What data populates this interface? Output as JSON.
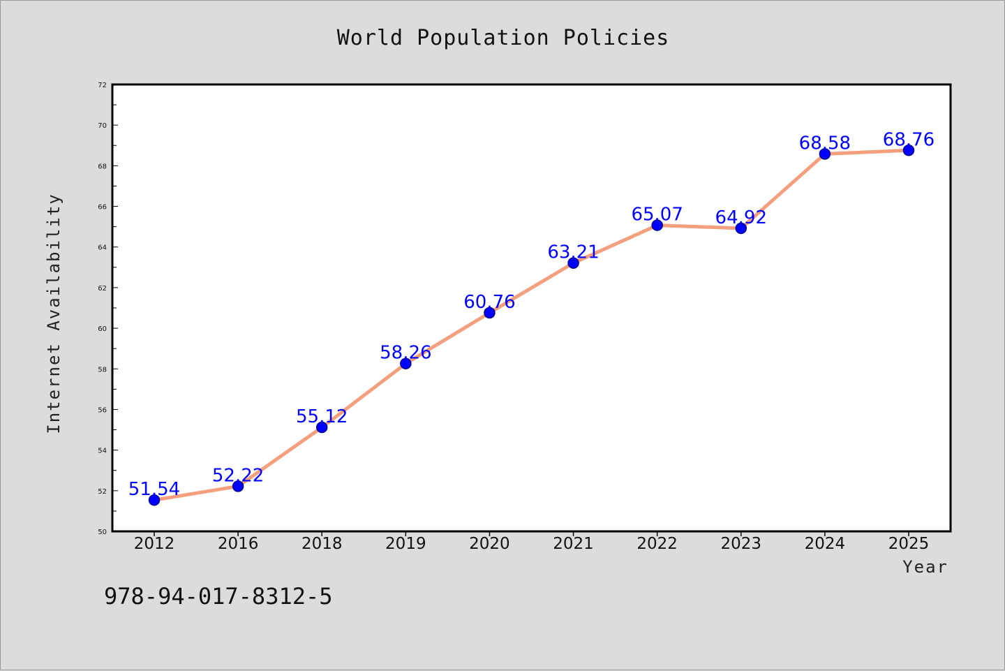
{
  "chart_data": {
    "type": "line",
    "title": "World Population Policies",
    "xlabel": "Year",
    "ylabel": "Internet Availability",
    "categories": [
      "2012",
      "2016",
      "2018",
      "2019",
      "2020",
      "2021",
      "2022",
      "2023",
      "2024",
      "2025"
    ],
    "values": [
      51.54,
      52.22,
      55.12,
      58.26,
      60.76,
      63.21,
      65.07,
      64.92,
      68.58,
      68.76
    ],
    "data_labels": [
      "51.54",
      "52.22",
      "55.12",
      "58.26",
      "60.76",
      "63.21",
      "65.07",
      "64.92",
      "68.58",
      "68.76"
    ],
    "ylim": [
      50,
      72
    ],
    "yticks": [
      "50",
      "52",
      "54",
      "56",
      "58",
      "60",
      "62",
      "64",
      "66",
      "68",
      "70",
      "72"
    ],
    "grid": false,
    "legend": "none",
    "colors": {
      "line": "#f4a07e",
      "marker": "#0000ff",
      "marker_edge": "#00008b",
      "label": "#0000ff"
    }
  },
  "note": "978-94-017-8312-5"
}
